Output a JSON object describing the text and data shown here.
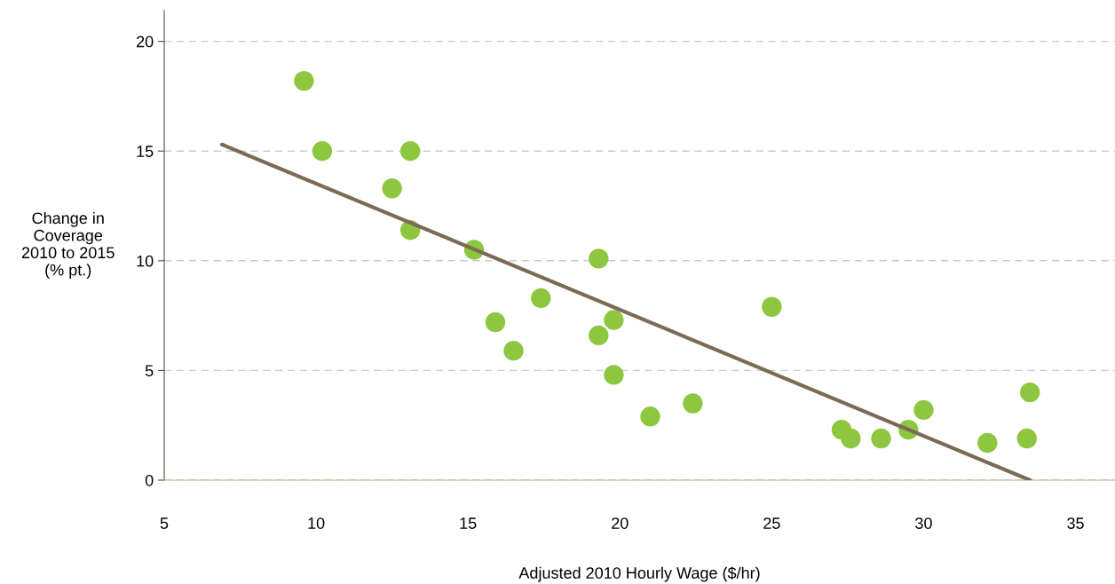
{
  "chart_data": {
    "type": "scatter",
    "xlabel": "Adjusted 2010 Hourly Wage ($/hr)",
    "ylabel": "Change in\nCoverage\n2010 to 2015\n(% pt.)",
    "xlim": [
      5,
      36.3
    ],
    "xticks": [
      5,
      10,
      15,
      20,
      25,
      30,
      35
    ],
    "ylim": [
      0,
      21.4
    ],
    "yticks": [
      0,
      5,
      10,
      15,
      20
    ],
    "grid": "y",
    "marker": "circle",
    "series": [
      {
        "color": "#8dc63f",
        "x": [
          9.6,
          10.2,
          12.5,
          13.1,
          13.1,
          15.2,
          15.9,
          16.5,
          17.4,
          19.3,
          19.3,
          19.8,
          19.8,
          21.0,
          22.4,
          25.0,
          27.3,
          27.6,
          28.6,
          29.5,
          30.0,
          32.1,
          33.4,
          33.5
        ],
        "values": [
          18.2,
          15.0,
          13.3,
          15.0,
          11.4,
          10.5,
          7.2,
          5.9,
          8.3,
          10.1,
          6.6,
          7.3,
          4.8,
          2.9,
          3.5,
          7.9,
          2.3,
          1.9,
          1.9,
          2.3,
          3.2,
          1.7,
          1.9,
          4.0
        ]
      },
      {
        "type": "line",
        "marker": "none",
        "color": "#7b6a55",
        "x": [
          6.9,
          33.5
        ],
        "values": [
          15.3,
          0
        ]
      }
    ]
  }
}
